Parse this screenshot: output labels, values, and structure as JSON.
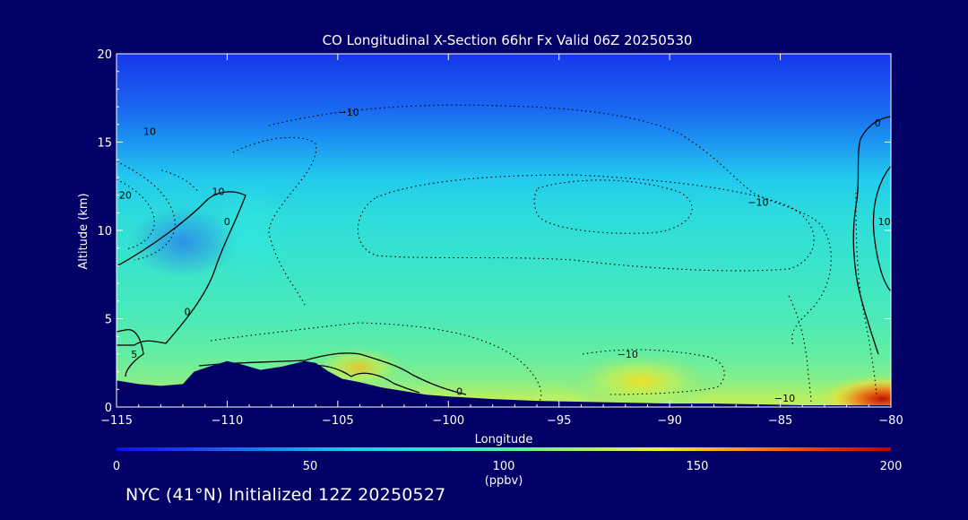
{
  "chart_data": {
    "type": "heatmap",
    "title": "CO Longitudinal X-Section 66hr  Fx Valid 06Z 20250530",
    "xlabel": "Longitude",
    "ylabel": "Altitude (km)",
    "xlim": [
      -115,
      -80
    ],
    "ylim": [
      0,
      20
    ],
    "x_ticks": [
      -115,
      -110,
      -105,
      -100,
      -95,
      -90,
      -85,
      -80
    ],
    "x_tick_labels": [
      "−115",
      "−110",
      "−105",
      "−100",
      "−95",
      "−90",
      "−85",
      "−80"
    ],
    "y_ticks": [
      0,
      5,
      10,
      15,
      20
    ],
    "y_tick_labels": [
      "0",
      "5",
      "10",
      "15",
      "20"
    ],
    "grid": false,
    "colorbar": {
      "range": [
        0,
        200
      ],
      "ticks": [
        0,
        50,
        100,
        150,
        200
      ],
      "tick_labels": [
        "0",
        "50",
        "100",
        "150",
        "200"
      ],
      "unit_label": "(ppbv)",
      "colors": [
        "#1010e0",
        "#1a44f0",
        "#1a86f2",
        "#22c6f0",
        "#2ee0d8",
        "#52ecb0",
        "#a8f070",
        "#f0f030",
        "#f4a010",
        "#e84010",
        "#c00000"
      ]
    },
    "concentration_profile": {
      "altitudes": [
        20,
        17,
        15,
        13,
        11,
        9,
        7,
        5,
        3,
        1.5,
        0.5
      ],
      "values": [
        15,
        30,
        45,
        62,
        76,
        84,
        90,
        96,
        104,
        112,
        125
      ]
    },
    "anomaly_contours": [
      {
        "label": "−10",
        "lon": -104.5,
        "alt": 16.7
      },
      {
        "label": "10",
        "lon": -113.5,
        "alt": 15.6
      },
      {
        "label": "20",
        "lon": -114.6,
        "alt": 12.0
      },
      {
        "label": "10",
        "lon": -110.4,
        "alt": 12.2
      },
      {
        "label": "0",
        "lon": -110.0,
        "alt": 10.5
      },
      {
        "label": "0",
        "lon": -111.8,
        "alt": 5.4
      },
      {
        "label": "5",
        "lon": -114.2,
        "alt": 3.0
      },
      {
        "label": "−10",
        "lon": -86.0,
        "alt": 11.6
      },
      {
        "label": "−10",
        "lon": -91.9,
        "alt": 3.0
      },
      {
        "label": "−10",
        "lon": -84.8,
        "alt": 0.5
      },
      {
        "label": "0",
        "lon": -99.5,
        "alt": 0.9
      },
      {
        "label": "0",
        "lon": -80.6,
        "alt": 16.1
      },
      {
        "label": "10",
        "lon": -80.3,
        "alt": 10.5
      }
    ],
    "terrain_profile": {
      "lon": [
        -115,
        -114,
        -113,
        -112,
        -111.5,
        -110.8,
        -110,
        -109.3,
        -108.5,
        -107.5,
        -106.5,
        -106,
        -105.4,
        -104.8,
        -104,
        -103,
        -102,
        -101,
        -100,
        -98,
        -96,
        -94,
        -92,
        -90,
        -88,
        -86,
        -84,
        -82,
        -80
      ],
      "alt": [
        1.5,
        1.3,
        1.2,
        1.3,
        2.0,
        2.3,
        2.6,
        2.4,
        2.1,
        2.3,
        2.6,
        2.5,
        2.0,
        1.6,
        1.4,
        1.1,
        0.9,
        0.7,
        0.6,
        0.45,
        0.35,
        0.3,
        0.25,
        0.2,
        0.2,
        0.15,
        0.1,
        0.1,
        0.1
      ]
    }
  },
  "footer": {
    "text": "NYC (41°N) Initialized 12Z 20250527"
  }
}
